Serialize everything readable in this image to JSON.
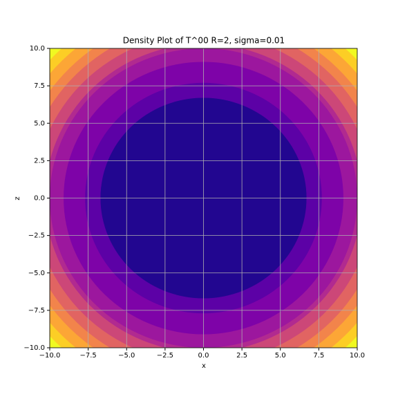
{
  "chart_data": {
    "type": "contour",
    "title": "Density Plot of T^00 R=2, sigma=0.01",
    "x_label": "x",
    "y_label": "z",
    "xlim": [
      -10,
      10
    ],
    "ylim": [
      -10,
      10
    ],
    "xticks": [
      {
        "value": -10,
        "label": "−10.0"
      },
      {
        "value": -7.5,
        "label": "−7.5"
      },
      {
        "value": -5,
        "label": "−5.0"
      },
      {
        "value": -2.5,
        "label": "−2.5"
      },
      {
        "value": 0,
        "label": "0.0"
      },
      {
        "value": 2.5,
        "label": "2.5"
      },
      {
        "value": 5,
        "label": "5.0"
      },
      {
        "value": 7.5,
        "label": "7.5"
      },
      {
        "value": 10,
        "label": "10.0"
      }
    ],
    "yticks": [
      {
        "value": -10,
        "label": "−10.0"
      },
      {
        "value": -7.5,
        "label": "−7.5"
      },
      {
        "value": -5,
        "label": "−5.0"
      },
      {
        "value": -2.5,
        "label": "−2.5"
      },
      {
        "value": 0,
        "label": "0.0"
      },
      {
        "value": 2.5,
        "label": "2.5"
      },
      {
        "value": 5,
        "label": "5.0"
      },
      {
        "value": 7.5,
        "label": "7.5"
      },
      {
        "value": 10,
        "label": "10.0"
      }
    ],
    "grid": true,
    "contours": [
      {
        "radius": 14.2,
        "color": "#f0f921"
      },
      {
        "radius": 13.6,
        "color": "#fcce25"
      },
      {
        "radius": 13.0,
        "color": "#fca636"
      },
      {
        "radius": 12.3,
        "color": "#f2844b"
      },
      {
        "radius": 11.7,
        "color": "#e16462"
      },
      {
        "radius": 11.0,
        "color": "#cc4778"
      },
      {
        "radius": 10.3,
        "color": "#b12a90"
      },
      {
        "radius": 10.0,
        "color": "#9c179e"
      },
      {
        "radius": 9.1,
        "color": "#7e03a8"
      },
      {
        "radius": 7.7,
        "color": "#5c01a6"
      },
      {
        "radius": 6.7,
        "color": "#220690"
      }
    ]
  }
}
